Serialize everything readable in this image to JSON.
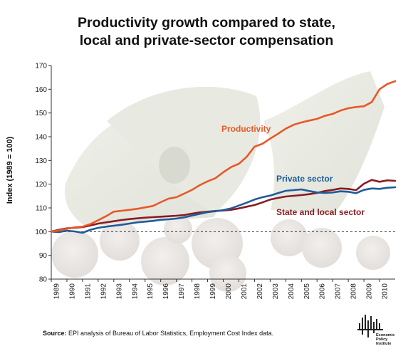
{
  "title_line1": "Productivity growth compared to state,",
  "title_line2": "local and private-sector compensation",
  "source_label": "Source:",
  "source_text": "EPI analysis of Bureau of Labor Statistics, Employment Cost Index data.",
  "logo": {
    "line1": "Economic",
    "line2": "Policy",
    "line3": "Institute"
  },
  "colors": {
    "productivity": "#e8582a",
    "private": "#1f5c99",
    "state_local": "#8a1c22",
    "axis": "#333333"
  },
  "chart_data": {
    "type": "line",
    "title": "Productivity growth compared to state, local and private-sector compensation",
    "ylabel": "Index (1989 = 100)",
    "xlabel": "",
    "ylim": [
      80,
      170
    ],
    "xlim": [
      1989,
      2011
    ],
    "yticks": [
      "80",
      "90",
      "100",
      "110",
      "120",
      "130",
      "140",
      "150",
      "160",
      "170"
    ],
    "xticks": [
      "1989",
      "1990",
      "1991",
      "1992",
      "1993",
      "1994",
      "1995",
      "1996",
      "1997",
      "1998",
      "1999",
      "2000",
      "2001",
      "2002",
      "2003",
      "2004",
      "2005",
      "2006",
      "2007",
      "2008",
      "2009",
      "2010"
    ],
    "reference_line": 100,
    "series": [
      {
        "name": "Productivity",
        "color_key": "productivity",
        "x": [
          1989,
          1989.5,
          1990,
          1990.5,
          1991,
          1991.5,
          1992,
          1992.5,
          1993,
          1993.5,
          1994,
          1994.5,
          1995,
          1995.5,
          1996,
          1996.5,
          1997,
          1997.5,
          1998,
          1998.5,
          1999,
          1999.5,
          2000,
          2000.5,
          2001,
          2001.5,
          2002,
          2002.5,
          2003,
          2003.5,
          2004,
          2004.5,
          2005,
          2005.5,
          2006,
          2006.5,
          2007,
          2007.5,
          2008,
          2008.5,
          2009,
          2009.5,
          2010,
          2010.5,
          2011
        ],
        "y": [
          100,
          100.5,
          101.2,
          101.8,
          102.1,
          103.2,
          104.8,
          106.5,
          108.4,
          108.8,
          109.2,
          109.6,
          110.2,
          110.8,
          112.4,
          113.9,
          114.5,
          116.0,
          117.6,
          119.6,
          121.2,
          122.5,
          125.0,
          127.2,
          128.6,
          131.5,
          135.8,
          137.0,
          139.2,
          141.2,
          143.4,
          145.0,
          146.0,
          146.8,
          147.5,
          148.8,
          149.6,
          151.0,
          152.0,
          152.5,
          152.8,
          154.6,
          160.0,
          162.2,
          163.4
        ]
      },
      {
        "name": "Private sector",
        "color_key": "private",
        "x": [
          1989,
          1989.5,
          1990,
          1990.5,
          1991,
          1991.5,
          1992,
          1992.5,
          1993,
          1993.5,
          1994,
          1994.5,
          1995,
          1995.5,
          1996,
          1996.5,
          1997,
          1997.5,
          1998,
          1998.5,
          1999,
          1999.5,
          2000,
          2000.5,
          2001,
          2001.5,
          2002,
          2002.5,
          2003,
          2003.5,
          2004,
          2004.5,
          2005,
          2005.5,
          2006,
          2006.5,
          2007,
          2007.5,
          2008,
          2008.5,
          2009,
          2009.5,
          2010,
          2010.5,
          2011
        ],
        "y": [
          100,
          99.8,
          100.4,
          100.1,
          99.5,
          100.8,
          101.6,
          102.1,
          102.5,
          102.9,
          103.4,
          103.9,
          104.2,
          104.5,
          105.0,
          105.2,
          105.5,
          106.0,
          106.8,
          107.5,
          108.2,
          108.6,
          109.1,
          109.8,
          111.0,
          112.2,
          113.5,
          114.5,
          115.2,
          116.2,
          117.2,
          117.5,
          117.8,
          117.1,
          116.5,
          116.3,
          116.5,
          117.0,
          116.8,
          116.2,
          117.6,
          118.2,
          118.0,
          118.5,
          118.7
        ]
      },
      {
        "name": "State and local sector",
        "color_key": "state_local",
        "x": [
          1989,
          1989.5,
          1990,
          1990.5,
          1991,
          1991.5,
          1992,
          1992.5,
          1993,
          1993.5,
          1994,
          1994.5,
          1995,
          1995.5,
          1996,
          1996.5,
          1997,
          1997.5,
          1998,
          1998.5,
          1999,
          1999.5,
          2000,
          2000.5,
          2001,
          2001.5,
          2002,
          2002.5,
          2003,
          2003.5,
          2004,
          2004.5,
          2005,
          2005.5,
          2006,
          2006.5,
          2007,
          2007.5,
          2008,
          2008.5,
          2009,
          2009.5,
          2010,
          2010.5,
          2011
        ],
        "y": [
          100,
          100.8,
          101.4,
          101.6,
          101.9,
          102.6,
          103.4,
          103.9,
          104.4,
          104.9,
          105.3,
          105.6,
          105.9,
          106.1,
          106.3,
          106.5,
          106.7,
          107.0,
          107.6,
          108.1,
          108.4,
          108.7,
          108.9,
          109.2,
          109.8,
          110.5,
          111.2,
          112.3,
          113.5,
          114.2,
          114.8,
          115.1,
          115.4,
          115.8,
          116.3,
          117.1,
          117.6,
          118.2,
          118.0,
          117.5,
          120.2,
          121.8,
          121.0,
          121.6,
          121.4
        ]
      }
    ],
    "annotations": [
      {
        "text": "Productivity",
        "color_key": "productivity"
      },
      {
        "text": "Private sector",
        "color_key": "private"
      },
      {
        "text": "State and local sector",
        "color_key": "state_local"
      }
    ],
    "grid": false,
    "legend": "inline labels"
  }
}
